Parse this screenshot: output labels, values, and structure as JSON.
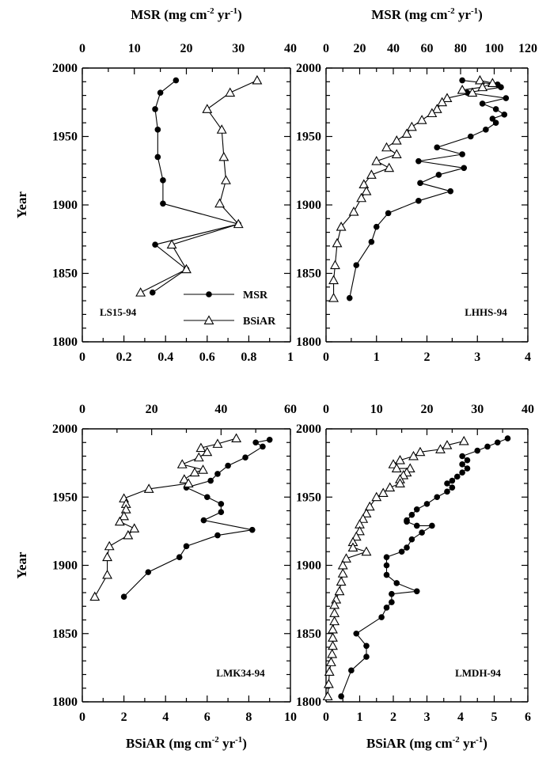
{
  "figure": {
    "top_axis_title": "MSR (mg cm",
    "bottom_axis_title": "BSiAR (mg cm",
    "sup_neg2": "-2",
    "unit_yr": " yr",
    "sup_neg1": "-1",
    "close_paren": ")"
  },
  "legend": [
    {
      "label": "MSR",
      "marker": "filled-circle"
    },
    {
      "label": "BSiAR",
      "marker": "open-triangle"
    }
  ],
  "chart_data": [
    {
      "type": "line",
      "panel": "LS15-94",
      "ylabel": "Year",
      "ylim": [
        1800,
        2000
      ],
      "yticks": [
        1800,
        1850,
        1900,
        1950,
        2000
      ],
      "top_axis": {
        "label": "MSR (mg cm-2 yr-1)",
        "lim": [
          0,
          40
        ],
        "ticks": [
          0,
          10,
          20,
          30,
          40
        ]
      },
      "bottom_axis": {
        "label": "",
        "lim": [
          0,
          1
        ],
        "ticks": [
          0,
          0.2,
          0.4,
          0.6,
          0.8,
          1
        ],
        "tick_labels": [
          "0",
          "0.2",
          "0.4",
          "0.6",
          "0.8",
          "1"
        ]
      },
      "legend_position": "bottom-right",
      "series": [
        {
          "name": "MSR",
          "marker": "circle",
          "axis": "top",
          "points": [
            [
              18,
              1991
            ],
            [
              15,
              1982
            ],
            [
              14,
              1970
            ],
            [
              14.5,
              1955
            ],
            [
              14.5,
              1935
            ],
            [
              15.5,
              1918
            ],
            [
              15.5,
              1901
            ],
            [
              30,
              1886
            ],
            [
              14,
              1871
            ],
            [
              20,
              1853
            ],
            [
              13.5,
              1836
            ]
          ]
        },
        {
          "name": "BSiAR",
          "marker": "triangle",
          "axis": "bottom",
          "points": [
            [
              0.84,
              1991
            ],
            [
              0.71,
              1982
            ],
            [
              0.6,
              1970
            ],
            [
              0.67,
              1955
            ],
            [
              0.68,
              1935
            ],
            [
              0.69,
              1918
            ],
            [
              0.66,
              1901
            ],
            [
              0.75,
              1886
            ],
            [
              0.43,
              1871
            ],
            [
              0.5,
              1853
            ],
            [
              0.28,
              1836
            ]
          ]
        }
      ]
    },
    {
      "type": "line",
      "panel": "LHHS-94",
      "ylabel": "",
      "ylim": [
        1800,
        2000
      ],
      "yticks": [
        1800,
        1850,
        1900,
        1950,
        2000
      ],
      "top_axis": {
        "label": "MSR (mg cm-2 yr-1)",
        "lim": [
          0,
          120
        ],
        "ticks": [
          0,
          20,
          40,
          60,
          80,
          100,
          120
        ]
      },
      "bottom_axis": {
        "label": "",
        "lim": [
          0,
          4
        ],
        "ticks": [
          0,
          1,
          2,
          3,
          4
        ],
        "tick_labels": [
          "0",
          "1",
          "2",
          "3",
          "4"
        ]
      },
      "series": [
        {
          "name": "MSR",
          "marker": "circle",
          "axis": "top",
          "points": [
            [
              81,
              1991
            ],
            [
              102,
              1988
            ],
            [
              104,
              1986
            ],
            [
              84,
              1982
            ],
            [
              107,
              1978
            ],
            [
              93,
              1974
            ],
            [
              101,
              1970
            ],
            [
              106,
              1966
            ],
            [
              99,
              1963
            ],
            [
              101,
              1960
            ],
            [
              95,
              1955
            ],
            [
              86,
              1950
            ],
            [
              66,
              1942
            ],
            [
              81,
              1937
            ],
            [
              55,
              1932
            ],
            [
              82,
              1927
            ],
            [
              67,
              1922
            ],
            [
              56,
              1916
            ],
            [
              74,
              1910
            ],
            [
              55,
              1903
            ],
            [
              37,
              1894
            ],
            [
              30,
              1884
            ],
            [
              27,
              1873
            ],
            [
              18,
              1856
            ],
            [
              14,
              1832
            ]
          ]
        },
        {
          "name": "BSiAR",
          "marker": "triangle",
          "axis": "bottom",
          "points": [
            [
              3.05,
              1991
            ],
            [
              3.3,
              1989
            ],
            [
              3.1,
              1986
            ],
            [
              2.7,
              1984
            ],
            [
              2.9,
              1982
            ],
            [
              2.4,
              1978
            ],
            [
              2.3,
              1975
            ],
            [
              2.2,
              1970
            ],
            [
              2.1,
              1967
            ],
            [
              1.9,
              1962
            ],
            [
              1.7,
              1957
            ],
            [
              1.6,
              1952
            ],
            [
              1.4,
              1947
            ],
            [
              1.2,
              1942
            ],
            [
              1.4,
              1937
            ],
            [
              1.0,
              1932
            ],
            [
              1.25,
              1927
            ],
            [
              0.9,
              1922
            ],
            [
              0.75,
              1915
            ],
            [
              0.8,
              1910
            ],
            [
              0.7,
              1905
            ],
            [
              0.55,
              1895
            ],
            [
              0.3,
              1884
            ],
            [
              0.22,
              1872
            ],
            [
              0.18,
              1856
            ],
            [
              0.15,
              1845
            ],
            [
              0.15,
              1832
            ]
          ]
        }
      ]
    },
    {
      "type": "line",
      "panel": "LMK34-94",
      "ylabel": "Year",
      "ylim": [
        1800,
        2000
      ],
      "yticks": [
        1800,
        1850,
        1900,
        1950,
        2000
      ],
      "top_axis": {
        "label": "",
        "lim": [
          0,
          60
        ],
        "ticks": [
          0,
          20,
          40,
          60
        ]
      },
      "bottom_axis": {
        "label": "BSiAR (mg cm-2 yr-1)",
        "lim": [
          0,
          10
        ],
        "ticks": [
          0,
          2,
          4,
          6,
          8,
          10
        ],
        "tick_labels": [
          "0",
          "2",
          "4",
          "6",
          "8",
          "10"
        ]
      },
      "series": [
        {
          "name": "MSR",
          "marker": "circle",
          "axis": "top",
          "points": [
            [
              54,
              1992
            ],
            [
              50,
              1990
            ],
            [
              52,
              1987
            ],
            [
              47,
              1979
            ],
            [
              42,
              1973
            ],
            [
              39,
              1967
            ],
            [
              37,
              1962
            ],
            [
              30,
              1957
            ],
            [
              36,
              1950
            ],
            [
              40,
              1945
            ],
            [
              40,
              1939
            ],
            [
              35,
              1933
            ],
            [
              49,
              1926
            ],
            [
              39,
              1922
            ],
            [
              30,
              1914
            ],
            [
              28,
              1906
            ],
            [
              19,
              1895
            ],
            [
              12,
              1877
            ]
          ]
        },
        {
          "name": "BSiAR",
          "marker": "triangle",
          "axis": "bottom",
          "points": [
            [
              7.4,
              1993
            ],
            [
              6.5,
              1989
            ],
            [
              5.7,
              1986
            ],
            [
              6.0,
              1983
            ],
            [
              5.6,
              1979
            ],
            [
              4.8,
              1974
            ],
            [
              5.8,
              1970
            ],
            [
              5.4,
              1968
            ],
            [
              4.9,
              1963
            ],
            [
              5.1,
              1960
            ],
            [
              3.2,
              1956
            ],
            [
              2.0,
              1949
            ],
            [
              2.1,
              1945
            ],
            [
              2.1,
              1941
            ],
            [
              2.0,
              1936
            ],
            [
              1.8,
              1932
            ],
            [
              2.5,
              1927
            ],
            [
              2.2,
              1922
            ],
            [
              1.3,
              1914
            ],
            [
              1.2,
              1906
            ],
            [
              1.2,
              1893
            ],
            [
              0.6,
              1877
            ]
          ]
        }
      ]
    },
    {
      "type": "line",
      "panel": "LMDH-94",
      "ylabel": "",
      "ylim": [
        1800,
        2000
      ],
      "yticks": [
        1800,
        1850,
        1900,
        1950,
        2000
      ],
      "top_axis": {
        "label": "",
        "lim": [
          0,
          40
        ],
        "ticks": [
          0,
          10,
          20,
          30,
          40
        ]
      },
      "bottom_axis": {
        "label": "BSiAR (mg cm-2 yr-1)",
        "lim": [
          0,
          6
        ],
        "ticks": [
          0,
          1,
          2,
          3,
          4,
          5,
          6
        ],
        "tick_labels": [
          "0",
          "1",
          "2",
          "3",
          "4",
          "5",
          "6"
        ]
      },
      "series": [
        {
          "name": "MSR",
          "marker": "circle",
          "axis": "top",
          "points": [
            [
              36,
              1993
            ],
            [
              34,
              1990
            ],
            [
              32,
              1987
            ],
            [
              30,
              1984
            ],
            [
              27,
              1980
            ],
            [
              28,
              1977
            ],
            [
              27,
              1974
            ],
            [
              28,
              1971
            ],
            [
              27,
              1968
            ],
            [
              26,
              1965
            ],
            [
              25,
              1962
            ],
            [
              24,
              1960
            ],
            [
              25,
              1957
            ],
            [
              24,
              1954
            ],
            [
              22,
              1950
            ],
            [
              20,
              1945
            ],
            [
              18,
              1941
            ],
            [
              17,
              1937
            ],
            [
              16,
              1933
            ],
            [
              16,
              1932
            ],
            [
              18,
              1929
            ],
            [
              21,
              1929
            ],
            [
              19,
              1924
            ],
            [
              17,
              1919
            ],
            [
              16,
              1913
            ],
            [
              15,
              1910
            ],
            [
              12,
              1906
            ],
            [
              12,
              1900
            ],
            [
              12,
              1893
            ],
            [
              14,
              1887
            ],
            [
              18,
              1881
            ],
            [
              13,
              1879
            ],
            [
              13,
              1873
            ],
            [
              12,
              1869
            ],
            [
              11,
              1862
            ],
            [
              6,
              1850
            ],
            [
              8,
              1841
            ],
            [
              8,
              1833
            ],
            [
              5,
              1823
            ],
            [
              3,
              1804
            ]
          ]
        },
        {
          "name": "BSiAR",
          "marker": "triangle",
          "axis": "bottom",
          "points": [
            [
              4.1,
              1991
            ],
            [
              3.6,
              1988
            ],
            [
              3.4,
              1985
            ],
            [
              2.8,
              1983
            ],
            [
              2.6,
              1980
            ],
            [
              2.2,
              1977
            ],
            [
              2.0,
              1974
            ],
            [
              2.1,
              1971
            ],
            [
              2.5,
              1971
            ],
            [
              2.4,
              1968
            ],
            [
              2.3,
              1966
            ],
            [
              2.2,
              1963
            ],
            [
              2.2,
              1960
            ],
            [
              1.9,
              1957
            ],
            [
              1.7,
              1953
            ],
            [
              1.5,
              1950
            ],
            [
              1.3,
              1943
            ],
            [
              1.2,
              1938
            ],
            [
              1.1,
              1934
            ],
            [
              1.0,
              1930
            ],
            [
              1.0,
              1925
            ],
            [
              0.9,
              1921
            ],
            [
              0.8,
              1917
            ],
            [
              0.8,
              1913
            ],
            [
              1.2,
              1910
            ],
            [
              0.6,
              1905
            ],
            [
              0.5,
              1900
            ],
            [
              0.5,
              1894
            ],
            [
              0.45,
              1888
            ],
            [
              0.4,
              1881
            ],
            [
              0.3,
              1875
            ],
            [
              0.25,
              1871
            ],
            [
              0.25,
              1865
            ],
            [
              0.25,
              1859
            ],
            [
              0.2,
              1853
            ],
            [
              0.2,
              1847
            ],
            [
              0.2,
              1841
            ],
            [
              0.18,
              1835
            ],
            [
              0.15,
              1829
            ],
            [
              0.1,
              1822
            ],
            [
              0.08,
              1813
            ],
            [
              0.05,
              1804
            ]
          ]
        }
      ]
    }
  ]
}
